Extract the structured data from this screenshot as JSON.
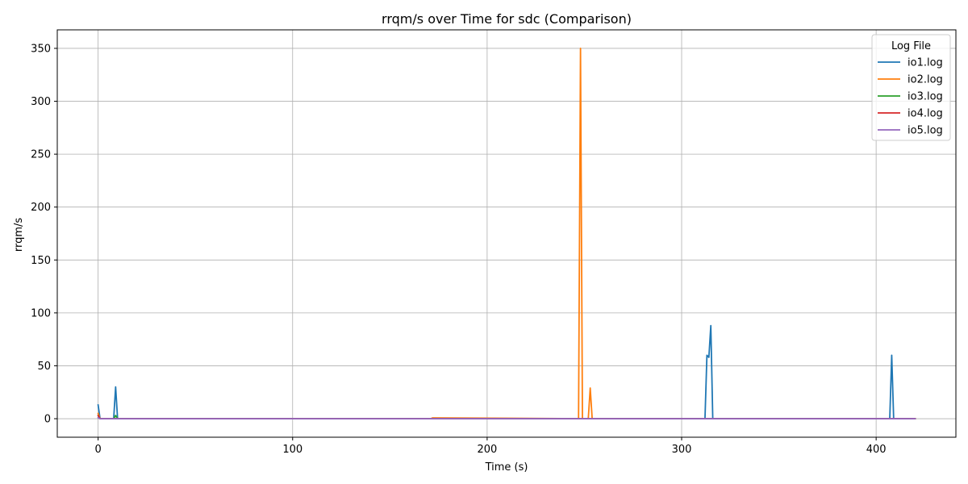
{
  "chart_data": {
    "type": "line",
    "title": "rrqm/s over Time for sdc (Comparison)",
    "xlabel": "Time (s)",
    "ylabel": "rrqm/s",
    "xlim": [
      -21,
      441
    ],
    "ylim": [
      -17.5,
      367.5
    ],
    "xticks": [
      0,
      100,
      200,
      300,
      400
    ],
    "yticks": [
      0,
      50,
      100,
      150,
      200,
      250,
      300,
      350
    ],
    "grid": true,
    "legend": {
      "title": "Log File",
      "placement": "top-right"
    },
    "series": [
      {
        "name": "io1.log",
        "color": "#1f77b4",
        "x": [
          0,
          1,
          8,
          9,
          10,
          312,
          313,
          314,
          315,
          316,
          407,
          408,
          409,
          420
        ],
        "y": [
          13,
          0,
          0,
          30,
          0,
          0,
          60,
          58,
          88,
          0,
          0,
          60,
          0,
          0
        ]
      },
      {
        "name": "io2.log",
        "color": "#ff7f0e",
        "x": [
          0,
          1,
          171,
          172,
          247,
          248,
          249,
          252,
          253,
          254,
          420
        ],
        "y": [
          5,
          0,
          0,
          0.8,
          0,
          350,
          0,
          0,
          29,
          0,
          0
        ]
      },
      {
        "name": "io3.log",
        "color": "#2ca02c",
        "x": [
          0,
          1,
          8,
          9,
          10,
          420
        ],
        "y": [
          3,
          0,
          0,
          3,
          0,
          0
        ]
      },
      {
        "name": "io4.log",
        "color": "#d62728",
        "x": [
          0,
          1,
          420
        ],
        "y": [
          3,
          0,
          0
        ]
      },
      {
        "name": "io5.log",
        "color": "#9467bd",
        "x": [
          0,
          1,
          420
        ],
        "y": [
          1,
          0,
          0
        ]
      }
    ]
  }
}
